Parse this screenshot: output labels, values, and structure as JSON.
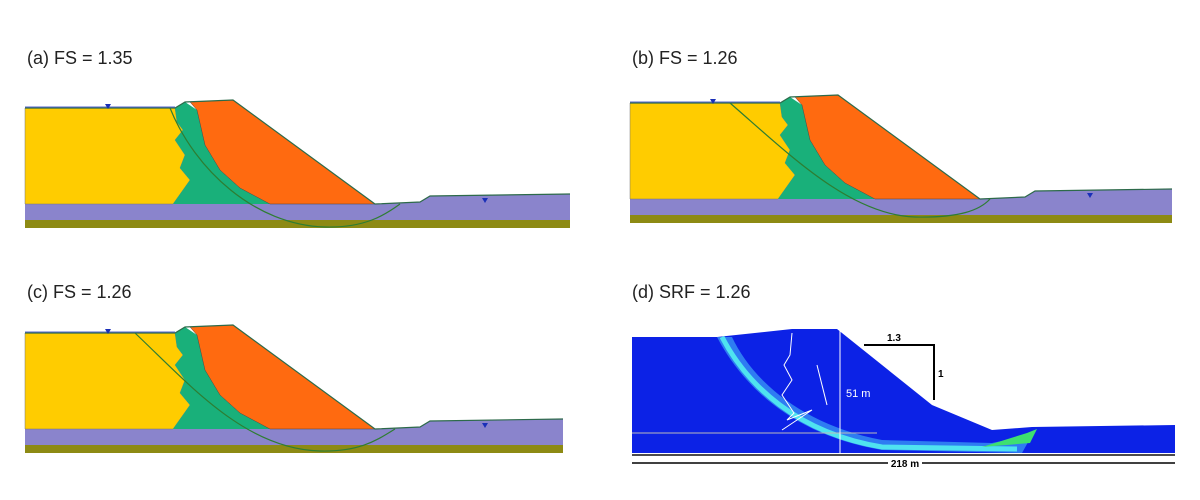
{
  "panels": [
    {
      "label": "(a) FS = 1.35"
    },
    {
      "label": "(b) FS = 1.26"
    },
    {
      "label": "(c) FS = 1.26"
    },
    {
      "label": "(d) SRF = 1.26",
      "annotations": {
        "slope_horizontal": "1.3",
        "slope_vertical": "1",
        "height": "51 m",
        "width": "218 m"
      }
    }
  ]
}
